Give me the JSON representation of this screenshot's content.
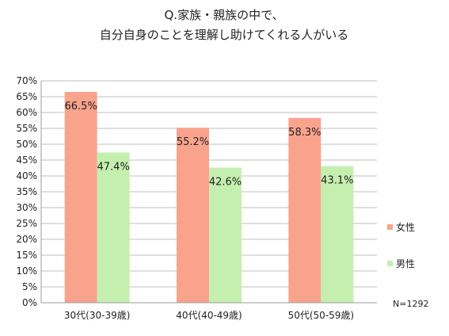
{
  "chart_data": {
    "type": "bar",
    "title": [
      "Q.家族・親族の中で、",
      "自分自身のことを理解し助けてくれる人がいる"
    ],
    "categories": [
      "30代(30-39歳)",
      "40代(40-49歳)",
      "50代(50-59歳)"
    ],
    "series": [
      {
        "name": "女性",
        "values": [
          66.5,
          55.2,
          58.3
        ],
        "labels": [
          "66.5%",
          "55.2%",
          "58.3%"
        ],
        "color": "#f9a38d"
      },
      {
        "name": "男性",
        "values": [
          47.4,
          42.6,
          43.1
        ],
        "labels": [
          "47.4%",
          "42.6%",
          "43.1%"
        ],
        "color": "#c5efae"
      }
    ],
    "ylim": [
      0,
      70
    ],
    "yticks": [
      0,
      5,
      10,
      15,
      20,
      25,
      30,
      35,
      40,
      45,
      50,
      55,
      60,
      65,
      70
    ],
    "ytick_labels": [
      "0%",
      "5%",
      "10%",
      "15%",
      "20%",
      "25%",
      "30%",
      "35%",
      "40%",
      "45%",
      "50%",
      "55%",
      "60%",
      "65%",
      "70%"
    ],
    "grid": true,
    "legend_position": "right",
    "note": "N=1292"
  }
}
